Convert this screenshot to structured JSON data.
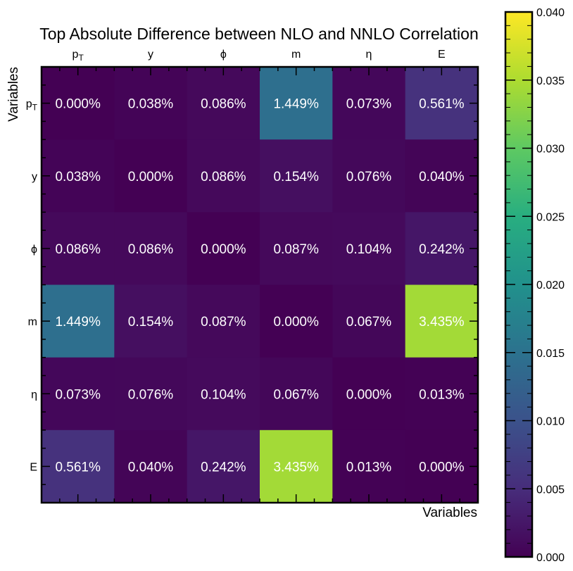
{
  "chart_data": {
    "type": "heatmap",
    "title": "Top Absolute Difference between NLO and NNLO Correlation",
    "xlabel": "Variables",
    "ylabel": "Variables",
    "categories": [
      "pT",
      "y",
      "ϕ",
      "m",
      "η",
      "E"
    ],
    "category_labels": [
      {
        "main": "p",
        "sub": "T"
      },
      {
        "main": "y",
        "sub": ""
      },
      {
        "main": "ϕ",
        "sub": ""
      },
      {
        "main": "m",
        "sub": ""
      },
      {
        "main": "η",
        "sub": ""
      },
      {
        "main": "E",
        "sub": ""
      }
    ],
    "values": [
      [
        0.0,
        0.00038,
        0.00086,
        0.01449,
        0.00073,
        0.00561
      ],
      [
        0.00038,
        0.0,
        0.00086,
        0.00154,
        0.00076,
        0.0004
      ],
      [
        0.00086,
        0.00086,
        0.0,
        0.00087,
        0.00104,
        0.00242
      ],
      [
        0.01449,
        0.00154,
        0.00087,
        0.0,
        0.00067,
        0.03435
      ],
      [
        0.00073,
        0.00076,
        0.00104,
        0.00067,
        0.0,
        0.00013
      ],
      [
        0.00561,
        0.0004,
        0.00242,
        0.03435,
        0.00013,
        0.0
      ]
    ],
    "cell_labels": [
      [
        "0.000%",
        "0.038%",
        "0.086%",
        "1.449%",
        "0.073%",
        "0.561%"
      ],
      [
        "0.038%",
        "0.000%",
        "0.086%",
        "0.154%",
        "0.076%",
        "0.040%"
      ],
      [
        "0.086%",
        "0.086%",
        "0.000%",
        "0.087%",
        "0.104%",
        "0.242%"
      ],
      [
        "1.449%",
        "0.154%",
        "0.087%",
        "0.000%",
        "0.067%",
        "3.435%"
      ],
      [
        "0.073%",
        "0.076%",
        "0.104%",
        "0.067%",
        "0.000%",
        "0.013%"
      ],
      [
        "0.561%",
        "0.040%",
        "0.242%",
        "3.435%",
        "0.013%",
        "0.000%"
      ]
    ],
    "colorscale": "viridis",
    "colorbar": {
      "range": [
        0.0,
        0.04
      ],
      "ticks": [
        0.0,
        0.005,
        0.01,
        0.015,
        0.02,
        0.025,
        0.03,
        0.035,
        0.04
      ],
      "tick_labels": [
        "0.000",
        "0.005",
        "0.010",
        "0.015",
        "0.020",
        "0.025",
        "0.030",
        "0.035",
        "0.040"
      ]
    },
    "x_tick_position": "top",
    "grid": false
  }
}
